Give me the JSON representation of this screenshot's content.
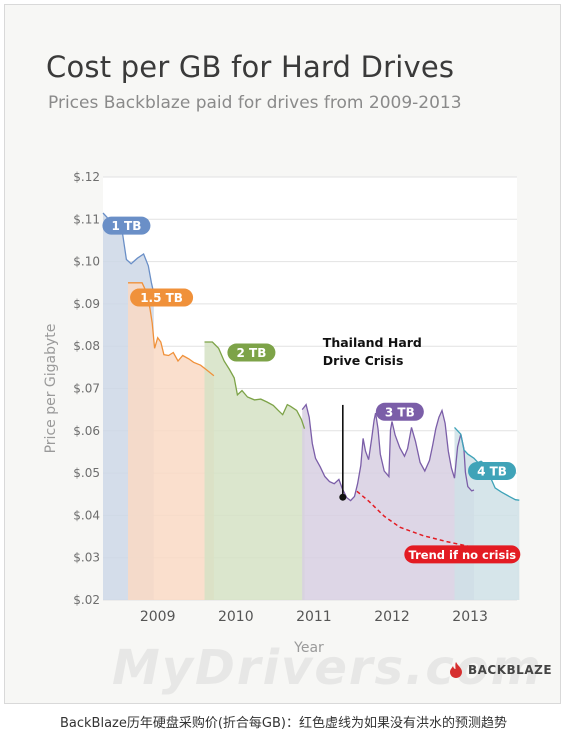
{
  "caption": "BackBlaze历年硬盘采购价(折合每GB)：红色虚线为如果没有洪水的预测趋势",
  "watermark": "MyDrivers.com",
  "logo_text": "BACKBLAZE",
  "chart_data": {
    "type": "area",
    "title": "Cost per GB for Hard Drives",
    "subtitle": "Prices Backblaze paid for drives from 2009-2013",
    "xlabel": "Year",
    "ylabel": "Price per Gigabyte",
    "xlim": [
      2008.3,
      2013.6
    ],
    "ylim": [
      0.02,
      0.12
    ],
    "yticks": [
      0.02,
      0.03,
      0.04,
      0.05,
      0.06,
      0.07,
      0.08,
      0.09,
      0.1,
      0.11,
      0.12
    ],
    "ytick_labels": [
      "$.02",
      "$.03",
      "$.04",
      "$.05",
      "$.06",
      "$.07",
      "$.08",
      "$.09",
      "$.10",
      "$.11",
      "$.12"
    ],
    "xticks": [
      2009,
      2010,
      2011,
      2012,
      2013
    ],
    "xtick_labels": [
      "2009",
      "2010",
      "2011",
      "2012",
      "2013"
    ],
    "grid": true,
    "series": [
      {
        "name": "1 TB",
        "color": "#6a8fc7",
        "fill": "#ccd7e6",
        "label_at": [
          2008.6,
          0.1085
        ],
        "points": [
          [
            2008.3,
            0.1115
          ],
          [
            2008.35,
            0.1105
          ],
          [
            2008.42,
            0.1088
          ],
          [
            2008.48,
            0.109
          ],
          [
            2008.54,
            0.108
          ],
          [
            2008.6,
            0.1005
          ],
          [
            2008.66,
            0.0995
          ],
          [
            2008.74,
            0.1008
          ],
          [
            2008.82,
            0.1018
          ],
          [
            2008.88,
            0.099
          ],
          [
            2008.92,
            0.095
          ],
          [
            2008.95,
            0.0925
          ]
        ]
      },
      {
        "name": "1.5 TB",
        "color": "#f0913a",
        "fill": "#f9d9c4",
        "label_at": [
          2009.05,
          0.0915
        ],
        "points": [
          [
            2008.62,
            0.095
          ],
          [
            2008.8,
            0.095
          ],
          [
            2008.85,
            0.093
          ],
          [
            2008.9,
            0.089
          ],
          [
            2008.93,
            0.0855
          ],
          [
            2008.96,
            0.0795
          ],
          [
            2009.0,
            0.082
          ],
          [
            2009.04,
            0.081
          ],
          [
            2009.08,
            0.078
          ],
          [
            2009.14,
            0.0778
          ],
          [
            2009.2,
            0.0785
          ],
          [
            2009.26,
            0.0765
          ],
          [
            2009.32,
            0.0778
          ],
          [
            2009.4,
            0.077
          ],
          [
            2009.46,
            0.0762
          ],
          [
            2009.55,
            0.0755
          ],
          [
            2009.62,
            0.0745
          ],
          [
            2009.72,
            0.073
          ]
        ]
      },
      {
        "name": "2 TB",
        "color": "#7da348",
        "fill": "#d5e2c4",
        "label_at": [
          2010.2,
          0.0785
        ],
        "points": [
          [
            2009.6,
            0.081
          ],
          [
            2009.7,
            0.081
          ],
          [
            2009.78,
            0.0795
          ],
          [
            2009.85,
            0.0765
          ],
          [
            2009.92,
            0.0745
          ],
          [
            2009.98,
            0.0725
          ],
          [
            2010.02,
            0.0685
          ],
          [
            2010.08,
            0.0695
          ],
          [
            2010.15,
            0.068
          ],
          [
            2010.24,
            0.0673
          ],
          [
            2010.32,
            0.0675
          ],
          [
            2010.4,
            0.0668
          ],
          [
            2010.48,
            0.066
          ],
          [
            2010.55,
            0.0647
          ],
          [
            2010.6,
            0.0638
          ],
          [
            2010.66,
            0.0662
          ],
          [
            2010.7,
            0.0658
          ],
          [
            2010.78,
            0.0648
          ],
          [
            2010.84,
            0.0627
          ],
          [
            2010.88,
            0.0605
          ]
        ]
      },
      {
        "name": "3 TB",
        "color": "#7b5ea8",
        "fill": "#d7cfe2",
        "label_at": [
          2012.1,
          0.0645
        ],
        "points": [
          [
            2010.85,
            0.065
          ],
          [
            2010.9,
            0.0662
          ],
          [
            2010.94,
            0.0632
          ],
          [
            2010.98,
            0.057
          ],
          [
            2011.02,
            0.0535
          ],
          [
            2011.08,
            0.0515
          ],
          [
            2011.14,
            0.0492
          ],
          [
            2011.2,
            0.048
          ],
          [
            2011.26,
            0.0475
          ],
          [
            2011.32,
            0.0485
          ],
          [
            2011.36,
            0.0465
          ],
          [
            2011.42,
            0.0442
          ],
          [
            2011.47,
            0.0435
          ],
          [
            2011.52,
            0.0445
          ],
          [
            2011.56,
            0.0475
          ],
          [
            2011.6,
            0.0518
          ],
          [
            2011.63,
            0.0582
          ],
          [
            2011.66,
            0.0552
          ],
          [
            2011.7,
            0.0532
          ],
          [
            2011.74,
            0.0582
          ],
          [
            2011.77,
            0.0625
          ],
          [
            2011.79,
            0.0642
          ],
          [
            2011.82,
            0.0605
          ],
          [
            2011.85,
            0.0545
          ],
          [
            2011.9,
            0.0505
          ],
          [
            2011.96,
            0.0492
          ],
          [
            2011.98,
            0.0602
          ],
          [
            2012.0,
            0.0622
          ],
          [
            2012.04,
            0.059
          ],
          [
            2012.1,
            0.056
          ],
          [
            2012.16,
            0.054
          ],
          [
            2012.2,
            0.0558
          ],
          [
            2012.25,
            0.0608
          ],
          [
            2012.3,
            0.0575
          ],
          [
            2012.36,
            0.0525
          ],
          [
            2012.42,
            0.0505
          ],
          [
            2012.48,
            0.053
          ],
          [
            2012.52,
            0.0565
          ],
          [
            2012.56,
            0.0605
          ],
          [
            2012.6,
            0.0632
          ],
          [
            2012.64,
            0.0648
          ],
          [
            2012.68,
            0.0618
          ],
          [
            2012.72,
            0.0552
          ],
          [
            2012.76,
            0.0512
          ],
          [
            2012.8,
            0.0488
          ],
          [
            2012.84,
            0.0562
          ],
          [
            2012.88,
            0.0592
          ],
          [
            2012.92,
            0.0558
          ],
          [
            2012.94,
            0.0502
          ],
          [
            2012.97,
            0.0468
          ],
          [
            2013.02,
            0.0458
          ],
          [
            2013.05,
            0.046
          ]
        ]
      },
      {
        "name": "4 TB",
        "color": "#3fa3b8",
        "fill": "#cfe1e6",
        "label_at": [
          2013.28,
          0.0505
        ],
        "points": [
          [
            2012.8,
            0.0608
          ],
          [
            2012.88,
            0.0592
          ],
          [
            2012.92,
            0.0555
          ],
          [
            2012.97,
            0.0545
          ],
          [
            2013.05,
            0.0535
          ],
          [
            2013.1,
            0.0525
          ],
          [
            2013.14,
            0.0528
          ],
          [
            2013.18,
            0.0522
          ],
          [
            2013.22,
            0.0515
          ],
          [
            2013.26,
            0.049
          ],
          [
            2013.32,
            0.0465
          ],
          [
            2013.4,
            0.0455
          ],
          [
            2013.5,
            0.0445
          ],
          [
            2013.58,
            0.0437
          ],
          [
            2013.63,
            0.0436
          ]
        ]
      }
    ],
    "trend": {
      "name": "Trend if no crisis",
      "color": "#e31b23",
      "points": [
        [
          2011.55,
          0.0457
        ],
        [
          2011.7,
          0.0434
        ],
        [
          2011.9,
          0.0398
        ],
        [
          2012.1,
          0.0372
        ],
        [
          2012.4,
          0.0352
        ],
        [
          2012.7,
          0.0338
        ],
        [
          2013.0,
          0.0326
        ],
        [
          2013.3,
          0.0317
        ],
        [
          2013.62,
          0.031
        ]
      ],
      "label_at": [
        2012.9,
        0.0308
      ]
    },
    "annotation": {
      "lines": [
        "Thailand Hard",
        "Drive Crisis"
      ],
      "x": 2011.37,
      "y": 0.0443,
      "label_y": 0.0595
    },
    "legend": "inline-labels"
  }
}
